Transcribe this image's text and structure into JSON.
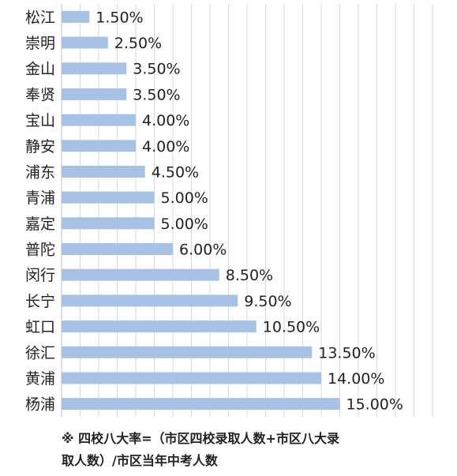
{
  "chart_data": {
    "type": "bar",
    "orientation": "horizontal",
    "categories": [
      "松江",
      "崇明",
      "金山",
      "奉贤",
      "宝山",
      "静安",
      "浦东",
      "青浦",
      "嘉定",
      "普陀",
      "闵行",
      "长宁",
      "虹口",
      "徐汇",
      "黄浦",
      "杨浦"
    ],
    "values": [
      1.5,
      2.5,
      3.5,
      3.5,
      4.0,
      4.0,
      4.5,
      5.0,
      5.0,
      6.0,
      8.5,
      9.5,
      10.5,
      13.5,
      14.0,
      15.0
    ],
    "value_labels": [
      "1.50%",
      "2.50%",
      "3.50%",
      "3.50%",
      "4.00%",
      "4.00%",
      "4.50%",
      "5.00%",
      "5.00%",
      "6.00%",
      "8.50%",
      "9.50%",
      "10.50%",
      "13.50%",
      "14.00%",
      "15.00%"
    ],
    "xlim": [
      0,
      20
    ],
    "grid": true,
    "colors": {
      "bar": "#a6c3e6",
      "grid": "#d9d9d9",
      "axis": "#bfbfbf"
    }
  },
  "footnote": {
    "line1": "※ 四校八大率=（市区四校录取人数+市区八大录",
    "line2": "取人数）/市区当年中考人数"
  }
}
